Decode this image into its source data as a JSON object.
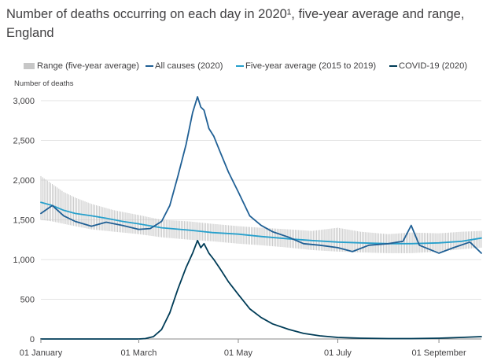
{
  "title": "Number of deaths occurring on each day in 2020¹, five-year average and range, England",
  "units_label": "Number of deaths",
  "chart_data": {
    "type": "line",
    "title": "Number of deaths occurring on each day in 2020¹, five-year average and range, England",
    "ylabel": "Number of deaths",
    "ylim": [
      0,
      3000
    ],
    "y_ticks": [
      "3,000",
      "2,500",
      "2,000",
      "1,500",
      "1,000",
      "500",
      "0"
    ],
    "y_tick_values": [
      3000,
      2500,
      2000,
      1500,
      1000,
      500,
      0
    ],
    "xlim": [
      "2020-01-01",
      "2020-09-27"
    ],
    "x_ticks": [
      "01 January",
      "01 March",
      "01 May",
      "01 July",
      "01 September"
    ],
    "x_tick_dates": [
      "2020-01-01",
      "2020-03-01",
      "2020-05-01",
      "2020-07-01",
      "2020-09-01"
    ],
    "grid": "horizontal",
    "legend_position": "top",
    "series": [
      {
        "name": "Range (five-year average)",
        "kind": "range",
        "color": "#c7c7c7",
        "x": [
          "2020-01-01",
          "2020-01-08",
          "2020-01-15",
          "2020-01-22",
          "2020-02-01",
          "2020-02-15",
          "2020-03-01",
          "2020-03-15",
          "2020-04-01",
          "2020-04-15",
          "2020-05-01",
          "2020-05-15",
          "2020-06-01",
          "2020-06-15",
          "2020-07-01",
          "2020-07-15",
          "2020-08-01",
          "2020-08-15",
          "2020-09-01",
          "2020-09-15",
          "2020-09-27"
        ],
        "low": [
          1500,
          1480,
          1450,
          1420,
          1380,
          1350,
          1320,
          1280,
          1250,
          1230,
          1200,
          1180,
          1150,
          1120,
          1100,
          1090,
          1080,
          1080,
          1100,
          1130,
          1150
        ],
        "high": [
          2050,
          1950,
          1850,
          1780,
          1700,
          1620,
          1560,
          1500,
          1480,
          1450,
          1420,
          1400,
          1380,
          1360,
          1400,
          1350,
          1320,
          1340,
          1330,
          1350,
          1360
        ]
      },
      {
        "name": "All causes (2020)",
        "color": "#206095",
        "x": [
          "2020-01-01",
          "2020-01-08",
          "2020-01-15",
          "2020-01-22",
          "2020-02-01",
          "2020-02-10",
          "2020-02-20",
          "2020-03-01",
          "2020-03-08",
          "2020-03-15",
          "2020-03-20",
          "2020-03-25",
          "2020-03-30",
          "2020-04-03",
          "2020-04-06",
          "2020-04-08",
          "2020-04-10",
          "2020-04-13",
          "2020-04-16",
          "2020-04-20",
          "2020-04-25",
          "2020-05-01",
          "2020-05-08",
          "2020-05-15",
          "2020-05-22",
          "2020-06-01",
          "2020-06-10",
          "2020-06-20",
          "2020-07-01",
          "2020-07-10",
          "2020-07-20",
          "2020-08-01",
          "2020-08-10",
          "2020-08-15",
          "2020-08-20",
          "2020-09-01",
          "2020-09-10",
          "2020-09-20",
          "2020-09-27"
        ],
        "y": [
          1580,
          1680,
          1550,
          1480,
          1420,
          1470,
          1430,
          1380,
          1390,
          1480,
          1680,
          2050,
          2450,
          2850,
          3050,
          2920,
          2880,
          2650,
          2550,
          2350,
          2100,
          1850,
          1550,
          1430,
          1350,
          1280,
          1200,
          1180,
          1150,
          1100,
          1180,
          1200,
          1230,
          1430,
          1180,
          1080,
          1150,
          1220,
          1080
        ]
      },
      {
        "name": "Five-year average (2015 to 2019)",
        "color": "#27a0cc",
        "x": [
          "2020-01-01",
          "2020-01-08",
          "2020-01-15",
          "2020-01-22",
          "2020-02-01",
          "2020-02-10",
          "2020-02-20",
          "2020-03-01",
          "2020-03-15",
          "2020-04-01",
          "2020-04-15",
          "2020-05-01",
          "2020-05-15",
          "2020-06-01",
          "2020-06-15",
          "2020-07-01",
          "2020-07-15",
          "2020-08-01",
          "2020-08-15",
          "2020-09-01",
          "2020-09-15",
          "2020-09-27"
        ],
        "y": [
          1720,
          1680,
          1620,
          1580,
          1550,
          1520,
          1480,
          1450,
          1400,
          1370,
          1340,
          1320,
          1290,
          1260,
          1240,
          1220,
          1210,
          1200,
          1200,
          1210,
          1230,
          1270
        ]
      },
      {
        "name": "COVID-19 (2020)",
        "color": "#003c57",
        "x": [
          "2020-01-01",
          "2020-03-01",
          "2020-03-05",
          "2020-03-10",
          "2020-03-15",
          "2020-03-20",
          "2020-03-25",
          "2020-03-30",
          "2020-04-03",
          "2020-04-06",
          "2020-04-08",
          "2020-04-10",
          "2020-04-13",
          "2020-04-16",
          "2020-04-20",
          "2020-04-25",
          "2020-05-01",
          "2020-05-08",
          "2020-05-15",
          "2020-05-22",
          "2020-06-01",
          "2020-06-10",
          "2020-06-20",
          "2020-07-01",
          "2020-07-15",
          "2020-08-01",
          "2020-08-15",
          "2020-09-01",
          "2020-09-15",
          "2020-09-27"
        ],
        "y": [
          0,
          0,
          5,
          30,
          120,
          330,
          630,
          900,
          1080,
          1240,
          1150,
          1200,
          1080,
          1000,
          880,
          720,
          560,
          380,
          270,
          190,
          120,
          70,
          40,
          20,
          10,
          5,
          5,
          10,
          20,
          30
        ]
      }
    ]
  }
}
